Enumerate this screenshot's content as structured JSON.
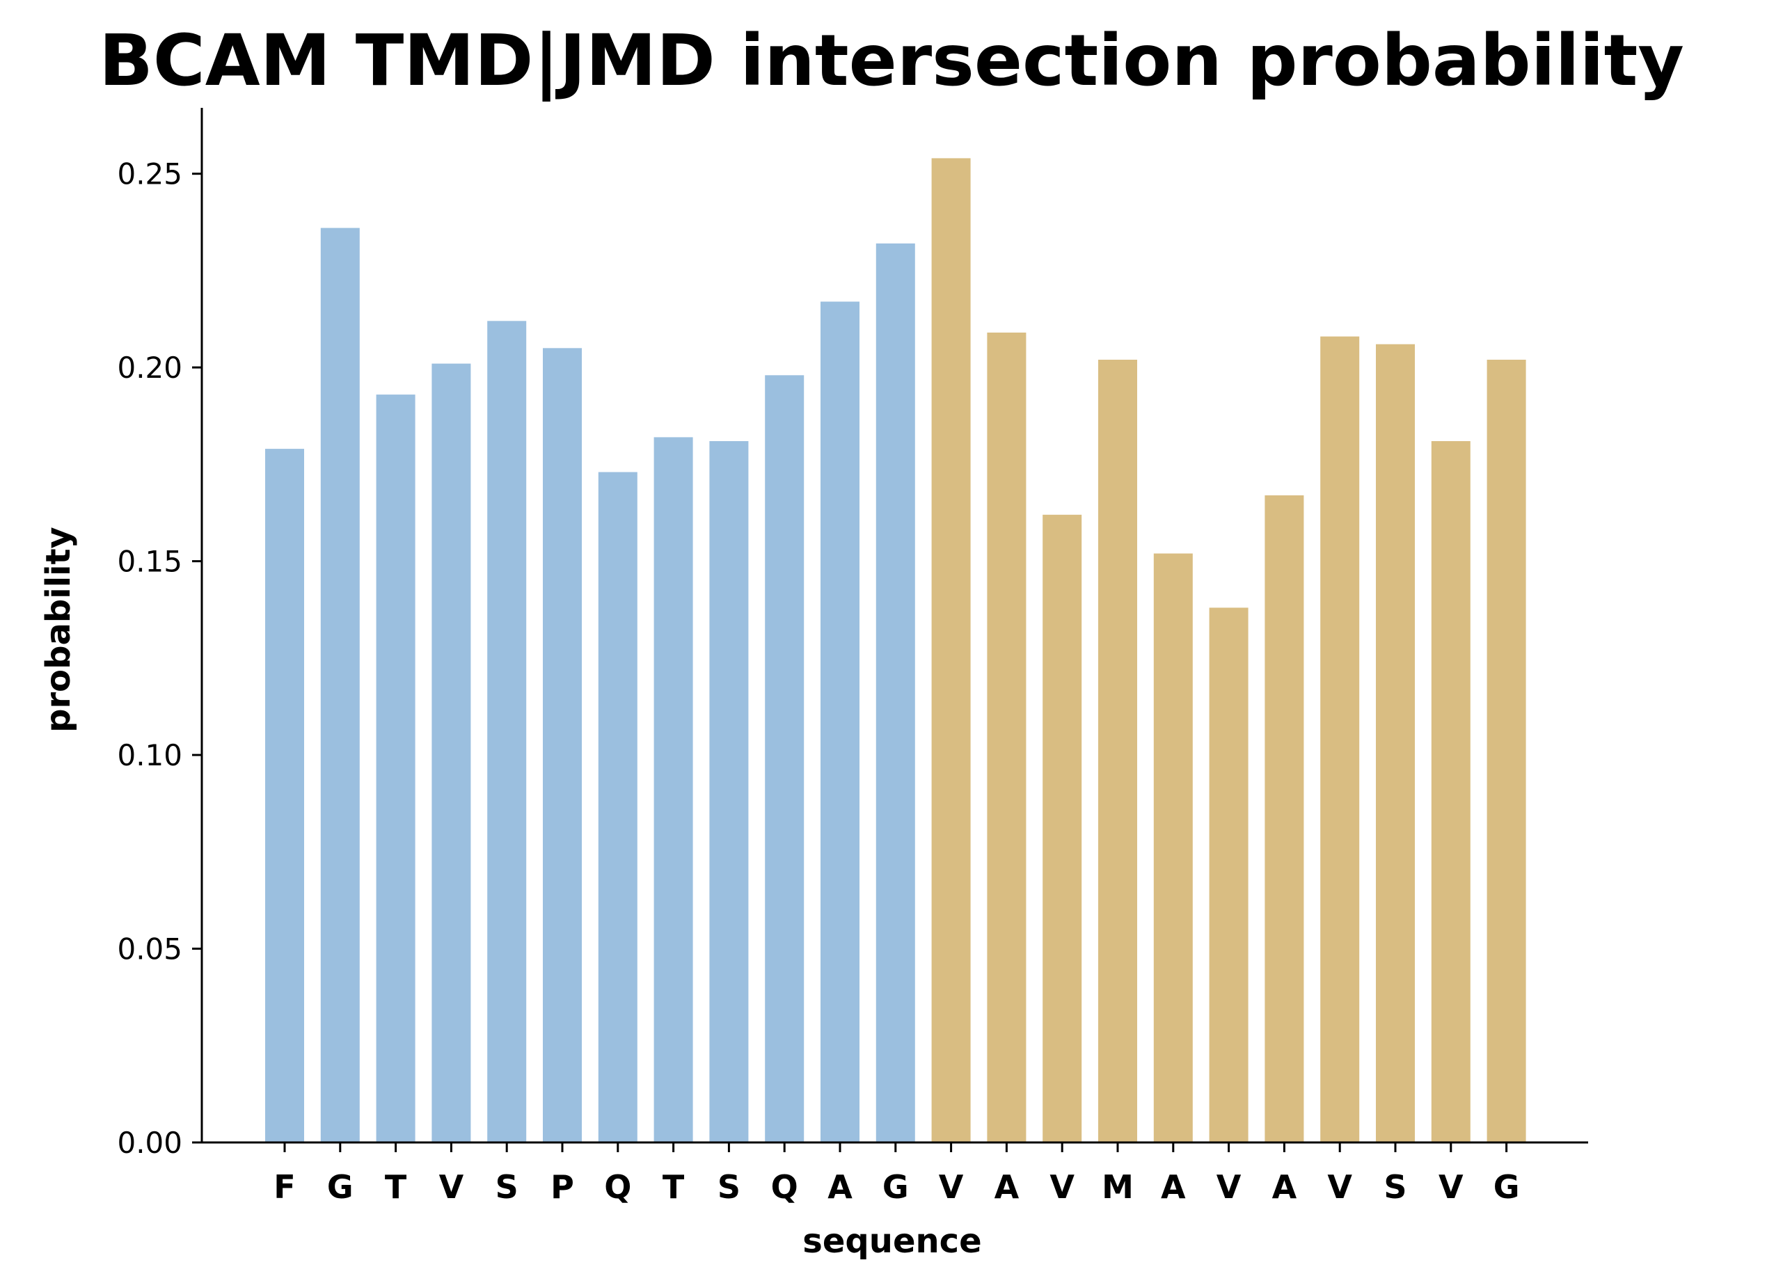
{
  "chart_data": {
    "type": "bar",
    "title": "BCAM TMD|JMD intersection probability",
    "xlabel": "sequence",
    "ylabel": "probability",
    "ylim": [
      0,
      0.267
    ],
    "yticks": [
      "0.00",
      "0.05",
      "0.10",
      "0.15",
      "0.20",
      "0.25"
    ],
    "grid": false,
    "categories": [
      "F",
      "G",
      "T",
      "V",
      "S",
      "P",
      "Q",
      "T",
      "S",
      "Q",
      "A",
      "G",
      "V",
      "A",
      "V",
      "M",
      "A",
      "V",
      "A",
      "V",
      "S",
      "V",
      "G"
    ],
    "values": [
      0.179,
      0.236,
      0.193,
      0.201,
      0.212,
      0.205,
      0.173,
      0.182,
      0.181,
      0.198,
      0.217,
      0.232,
      0.254,
      0.209,
      0.162,
      0.202,
      0.152,
      0.138,
      0.167,
      0.208,
      0.206,
      0.181,
      0.202
    ],
    "bar_colors": [
      "#9bbfdf",
      "#9bbfdf",
      "#9bbfdf",
      "#9bbfdf",
      "#9bbfdf",
      "#9bbfdf",
      "#9bbfdf",
      "#9bbfdf",
      "#9bbfdf",
      "#9bbfdf",
      "#9bbfdf",
      "#9bbfdf",
      "#d9bd82",
      "#d9bd82",
      "#d9bd82",
      "#d9bd82",
      "#d9bd82",
      "#d9bd82",
      "#d9bd82",
      "#d9bd82",
      "#d9bd82",
      "#d9bd82",
      "#d9bd82"
    ]
  }
}
